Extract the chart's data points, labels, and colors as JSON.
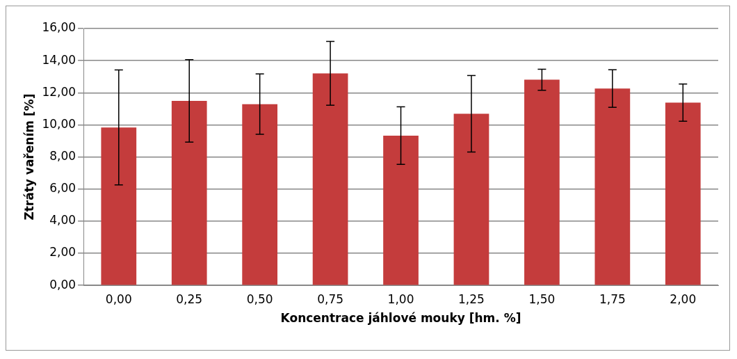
{
  "chart_data": {
    "type": "bar",
    "xlabel": "Koncentrace jáhlové mouky [hm. %]",
    "ylabel": "Ztráty vařením [%]",
    "categories": [
      "0,00",
      "0,25",
      "0,50",
      "0,75",
      "1,00",
      "1,25",
      "1,50",
      "1,75",
      "2,00"
    ],
    "values": [
      9.84,
      11.49,
      11.29,
      13.21,
      9.33,
      10.69,
      12.81,
      12.26,
      11.38
    ],
    "errors": [
      3.58,
      2.57,
      1.88,
      1.99,
      1.79,
      2.38,
      0.66,
      1.17,
      1.16
    ],
    "color": "#c43c3c",
    "ylim": [
      0,
      16
    ],
    "yticks": [
      {
        "value": 0,
        "label": "0,00"
      },
      {
        "value": 2,
        "label": "2,00"
      },
      {
        "value": 4,
        "label": "4,00"
      },
      {
        "value": 6,
        "label": "6,00"
      },
      {
        "value": 8,
        "label": "8,00"
      },
      {
        "value": 10,
        "label": "10,00"
      },
      {
        "value": 12,
        "label": "12,00"
      },
      {
        "value": 14,
        "label": "14,00"
      },
      {
        "value": 16,
        "label": "16,00"
      }
    ],
    "grid": "y"
  }
}
